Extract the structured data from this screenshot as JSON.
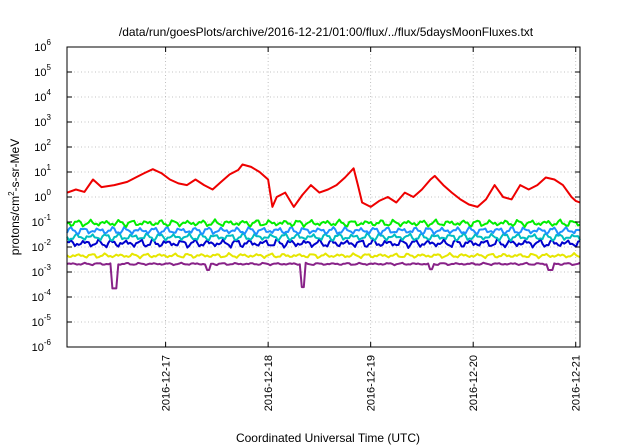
{
  "chart_data": {
    "type": "line",
    "title": "/data/run/goesPlots/archive/2016-12-21/01:00/flux/../flux/5daysMoonFluxes.txt",
    "xlabel": "Coordinated Universal Time (UTC)",
    "ylabel_main": "protons/cm",
    "ylabel_sup": "2",
    "ylabel_rest": "-s-sr-MeV",
    "yscale": "log",
    "ylim_exponents": [
      -6,
      6
    ],
    "y_ticks": [
      {
        "base": "10",
        "exp": "6"
      },
      {
        "base": "10",
        "exp": "5"
      },
      {
        "base": "10",
        "exp": "4"
      },
      {
        "base": "10",
        "exp": "3"
      },
      {
        "base": "10",
        "exp": "2"
      },
      {
        "base": "10",
        "exp": "1"
      },
      {
        "base": "10",
        "exp": "0"
      },
      {
        "base": "10",
        "exp": "-1"
      },
      {
        "base": "10",
        "exp": "-2"
      },
      {
        "base": "10",
        "exp": "-3"
      },
      {
        "base": "10",
        "exp": "-4"
      },
      {
        "base": "10",
        "exp": "-5"
      },
      {
        "base": "10",
        "exp": "-6"
      }
    ],
    "xlim": [
      "2016-12-16 00:55",
      "2016-12-21 01:00"
    ],
    "x_ticks": [
      "2016-12-17",
      "2016-12-18",
      "2016-12-19",
      "2016-12-20",
      "2016-12-21"
    ],
    "grid": true,
    "series": [
      {
        "color": "#ee0000",
        "points": [
          [
            "2016-12-16 01:00",
            1.5
          ],
          [
            "2016-12-16 03:00",
            2.0
          ],
          [
            "2016-12-16 05:00",
            1.6
          ],
          [
            "2016-12-16 07:00",
            5.0
          ],
          [
            "2016-12-16 09:00",
            2.5
          ],
          [
            "2016-12-16 12:00",
            3.0
          ],
          [
            "2016-12-16 15:00",
            4.0
          ],
          [
            "2016-12-16 17:00",
            6.0
          ],
          [
            "2016-12-16 19:00",
            9.0
          ],
          [
            "2016-12-16 21:00",
            13.0
          ],
          [
            "2016-12-16 23:00",
            9.0
          ],
          [
            "2016-12-17 01:00",
            5.0
          ],
          [
            "2016-12-17 03:00",
            3.5
          ],
          [
            "2016-12-17 05:00",
            3.0
          ],
          [
            "2016-12-17 07:00",
            5.0
          ],
          [
            "2016-12-17 09:00",
            3.0
          ],
          [
            "2016-12-17 11:00",
            2.0
          ],
          [
            "2016-12-17 13:00",
            4.0
          ],
          [
            "2016-12-17 15:00",
            8.0
          ],
          [
            "2016-12-17 17:00",
            12.0
          ],
          [
            "2016-12-17 18:00",
            20.0
          ],
          [
            "2016-12-17 20:00",
            16.0
          ],
          [
            "2016-12-17 22:00",
            10.0
          ],
          [
            "2016-12-18 00:00",
            5.0
          ],
          [
            "2016-12-18 01:00",
            0.4
          ],
          [
            "2016-12-18 02:00",
            1.0
          ],
          [
            "2016-12-18 04:00",
            1.5
          ],
          [
            "2016-12-18 06:00",
            0.4
          ],
          [
            "2016-12-18 08:00",
            1.2
          ],
          [
            "2016-12-18 10:00",
            3.0
          ],
          [
            "2016-12-18 12:00",
            1.5
          ],
          [
            "2016-12-18 14:00",
            2.0
          ],
          [
            "2016-12-18 16:00",
            3.0
          ],
          [
            "2016-12-18 18:00",
            6.0
          ],
          [
            "2016-12-18 20:00",
            14.0
          ],
          [
            "2016-12-18 21:00",
            3.0
          ],
          [
            "2016-12-18 22:00",
            0.6
          ],
          [
            "2016-12-19 00:00",
            0.4
          ],
          [
            "2016-12-19 02:00",
            0.7
          ],
          [
            "2016-12-19 04:00",
            1.0
          ],
          [
            "2016-12-19 06:00",
            0.6
          ],
          [
            "2016-12-19 08:00",
            1.5
          ],
          [
            "2016-12-19 10:00",
            1.0
          ],
          [
            "2016-12-19 12:00",
            2.0
          ],
          [
            "2016-12-19 14:00",
            5.0
          ],
          [
            "2016-12-19 15:00",
            7.0
          ],
          [
            "2016-12-19 17:00",
            3.0
          ],
          [
            "2016-12-19 19:00",
            1.5
          ],
          [
            "2016-12-19 21:00",
            0.8
          ],
          [
            "2016-12-19 23:00",
            0.5
          ],
          [
            "2016-12-20 01:00",
            0.4
          ],
          [
            "2016-12-20 03:00",
            0.8
          ],
          [
            "2016-12-20 05:00",
            3.0
          ],
          [
            "2016-12-20 07:00",
            1.0
          ],
          [
            "2016-12-20 09:00",
            0.8
          ],
          [
            "2016-12-20 11:00",
            3.0
          ],
          [
            "2016-12-20 13:00",
            2.0
          ],
          [
            "2016-12-20 15:00",
            3.0
          ],
          [
            "2016-12-20 17:00",
            6.0
          ],
          [
            "2016-12-20 19:00",
            5.0
          ],
          [
            "2016-12-20 21:00",
            3.0
          ],
          [
            "2016-12-20 23:00",
            1.0
          ],
          [
            "2016-12-21 00:00",
            0.7
          ],
          [
            "2016-12-21 01:00",
            0.6
          ]
        ]
      },
      {
        "color": "#00ee00",
        "base": 0.09,
        "amp": 0.45,
        "dips": []
      },
      {
        "color": "#1e90ff",
        "base": 0.045,
        "amp": 0.5,
        "dips": []
      },
      {
        "color": "#00bfbf",
        "base": 0.025,
        "amp": 0.5,
        "dips": []
      },
      {
        "color": "#0000cd",
        "base": 0.014,
        "amp": 0.55,
        "dips": []
      },
      {
        "color": "#e6e600",
        "base": 0.0045,
        "amp": 0.3,
        "dips": []
      },
      {
        "color": "#882288",
        "base": 0.0021,
        "amp": 0.15,
        "dips": [
          [
            "2016-12-16 12:00",
            0.00022
          ],
          [
            "2016-12-17 10:00",
            0.0012
          ],
          [
            "2016-12-18 08:00",
            0.00025
          ],
          [
            "2016-12-19 14:00",
            0.0013
          ],
          [
            "2016-12-20 18:00",
            0.0012
          ]
        ]
      }
    ]
  }
}
